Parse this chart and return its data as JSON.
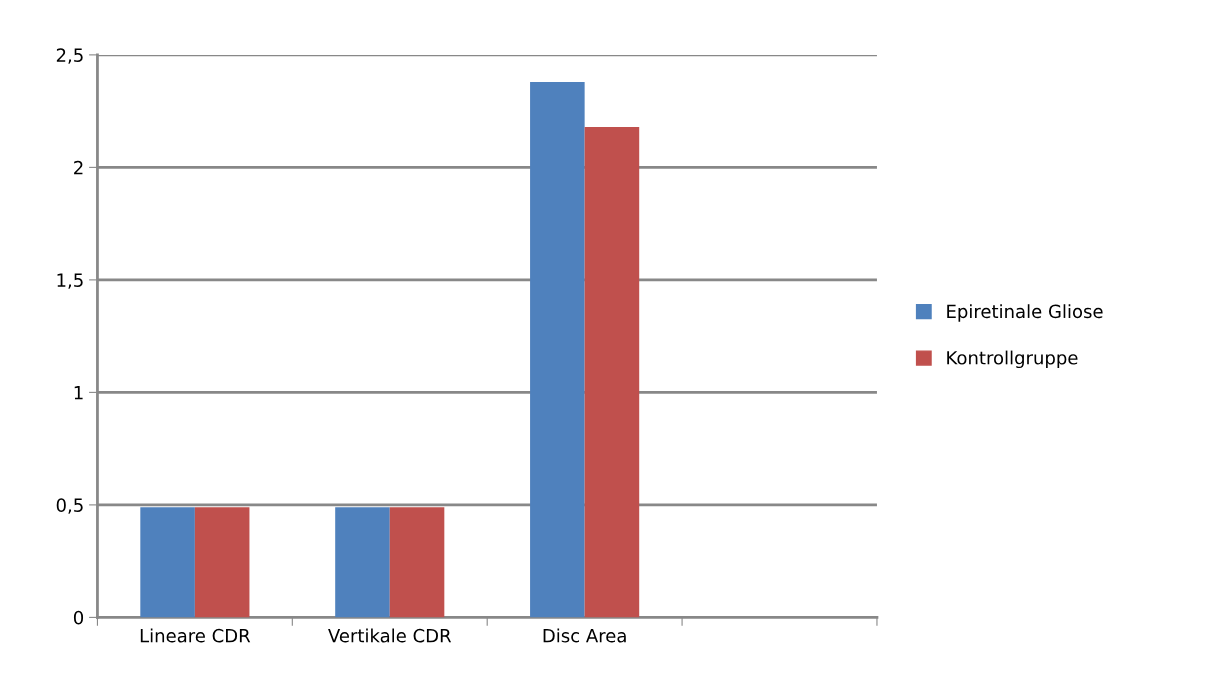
{
  "chart_data": {
    "type": "bar",
    "categories": [
      "Lineare CDR",
      "Vertikale CDR",
      "Disc Area",
      null
    ],
    "series": [
      {
        "name": "Epiretinale Gliose",
        "color": "#4f81bd",
        "values": [
          0.49,
          0.49,
          2.38,
          null
        ]
      },
      {
        "name": "Kontrollgruppe",
        "color": "#c0504d",
        "values": [
          0.49,
          0.49,
          2.18,
          null
        ]
      }
    ],
    "ylim": [
      0,
      2.5
    ],
    "yticks": [
      0,
      {
        "value": 0.5,
        "label": "0,5"
      },
      1,
      {
        "value": 1.5,
        "label": "1,5"
      },
      2,
      {
        "value": 2.5,
        "label": "2,5"
      }
    ],
    "grid": "y",
    "legend": "right"
  }
}
